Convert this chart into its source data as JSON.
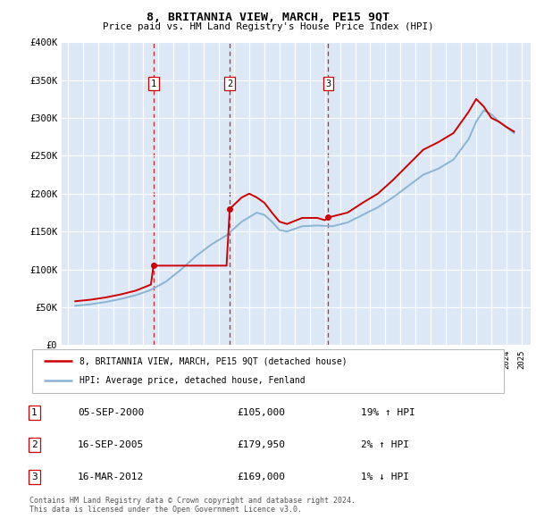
{
  "title": "8, BRITANNIA VIEW, MARCH, PE15 9QT",
  "subtitle": "Price paid vs. HM Land Registry's House Price Index (HPI)",
  "footnote": "Contains HM Land Registry data © Crown copyright and database right 2024.\nThis data is licensed under the Open Government Licence v3.0.",
  "legend_red": "8, BRITANNIA VIEW, MARCH, PE15 9QT (detached house)",
  "legend_blue": "HPI: Average price, detached house, Fenland",
  "sales": [
    {
      "num": 1,
      "date": "05-SEP-2000",
      "price": 105000,
      "pct": "19%",
      "dir": "↑"
    },
    {
      "num": 2,
      "date": "16-SEP-2005",
      "price": 179950,
      "pct": "2%",
      "dir": "↑"
    },
    {
      "num": 3,
      "date": "16-MAR-2012",
      "price": 169000,
      "pct": "1%",
      "dir": "↓"
    }
  ],
  "sale_years": [
    2000.67,
    2005.71,
    2012.21
  ],
  "sale_prices": [
    105000,
    179950,
    169000
  ],
  "ylim": [
    0,
    400000
  ],
  "yticks": [
    0,
    50000,
    100000,
    150000,
    200000,
    250000,
    300000,
    350000,
    400000
  ],
  "red_color": "#cc0000",
  "blue_color": "#8ab4d4",
  "plot_bg": "#dce8f5",
  "grid_color": "#ffffff",
  "hpi_data": {
    "years": [
      1995.5,
      1996.5,
      1997.5,
      1998.5,
      1999.5,
      2000.5,
      2001.5,
      2002.5,
      2003.5,
      2004.5,
      2005.5,
      2006.5,
      2007.5,
      2008.0,
      2008.5,
      2009.0,
      2009.5,
      2010.5,
      2011.5,
      2012.5,
      2013.5,
      2014.5,
      2015.5,
      2016.5,
      2017.5,
      2018.5,
      2019.5,
      2020.5,
      2021.5,
      2022.0,
      2022.5,
      2023.0,
      2023.5,
      2024.0,
      2024.5
    ],
    "values": [
      52000,
      54000,
      57000,
      61000,
      66000,
      73000,
      84000,
      100000,
      118000,
      133000,
      145000,
      163000,
      175000,
      172000,
      163000,
      152000,
      150000,
      157000,
      158000,
      157000,
      162000,
      172000,
      182000,
      195000,
      210000,
      225000,
      233000,
      245000,
      272000,
      295000,
      310000,
      305000,
      295000,
      288000,
      280000
    ]
  },
  "red_data": {
    "years": [
      1995.5,
      1996.5,
      1997.5,
      1998.5,
      1999.5,
      2000.5,
      2000.67,
      2001.5,
      2002.5,
      2003.5,
      2004.5,
      2005.5,
      2005.71,
      2006.5,
      2007.0,
      2007.5,
      2008.0,
      2008.5,
      2009.0,
      2009.5,
      2010.5,
      2011.5,
      2012.0,
      2012.21,
      2012.5,
      2013.5,
      2014.5,
      2015.5,
      2016.5,
      2017.5,
      2018.5,
      2019.5,
      2020.5,
      2021.5,
      2022.0,
      2022.5,
      2023.0,
      2023.5,
      2024.0,
      2024.5
    ],
    "values": [
      58000,
      60000,
      63000,
      67000,
      72000,
      80000,
      105000,
      105000,
      105000,
      105000,
      105000,
      105000,
      179950,
      195000,
      200000,
      195000,
      188000,
      175000,
      163000,
      160000,
      168000,
      168000,
      165000,
      169000,
      170000,
      175000,
      188000,
      200000,
      218000,
      238000,
      258000,
      268000,
      280000,
      308000,
      325000,
      315000,
      300000,
      295000,
      288000,
      282000
    ]
  }
}
